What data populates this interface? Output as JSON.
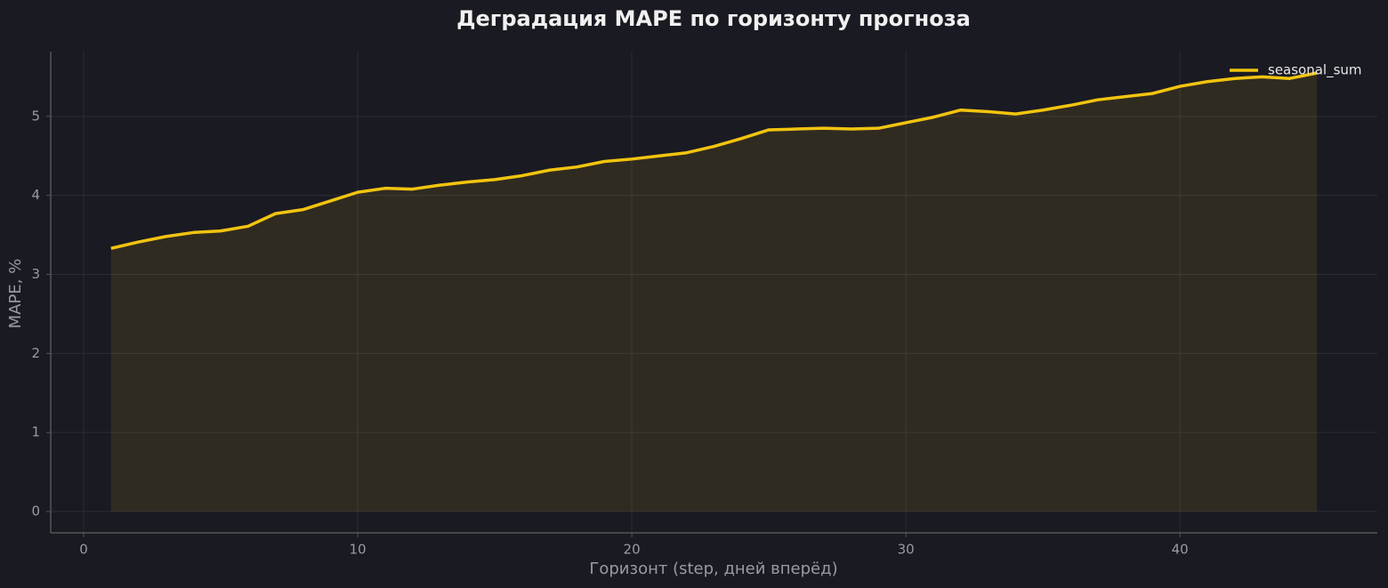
{
  "chart_data": {
    "type": "line",
    "title": "Деградация MAPE по горизонту прогноза",
    "xlabel": "Горизонт (step, дней вперёд)",
    "ylabel": "MAPE, %",
    "x": [
      1,
      2,
      3,
      4,
      5,
      6,
      7,
      8,
      9,
      10,
      11,
      12,
      13,
      14,
      15,
      16,
      17,
      18,
      19,
      20,
      21,
      22,
      23,
      24,
      25,
      26,
      27,
      28,
      29,
      30,
      31,
      32,
      33,
      34,
      35,
      36,
      37,
      38,
      39,
      40,
      41,
      42,
      43,
      44,
      45
    ],
    "series": [
      {
        "name": "seasonal_sum",
        "color": "#f2c40f",
        "values": [
          3.33,
          3.41,
          3.48,
          3.53,
          3.55,
          3.61,
          3.77,
          3.82,
          3.93,
          4.04,
          4.09,
          4.08,
          4.13,
          4.17,
          4.2,
          4.25,
          4.32,
          4.36,
          4.43,
          4.46,
          4.5,
          4.54,
          4.62,
          4.72,
          4.83,
          4.84,
          4.85,
          4.84,
          4.85,
          4.92,
          4.99,
          5.08,
          5.06,
          5.03,
          5.08,
          5.14,
          5.21,
          5.25,
          5.29,
          5.38,
          5.44,
          5.48,
          5.5,
          5.48,
          5.55
        ]
      }
    ],
    "xlim": [
      -1.2,
      47.2
    ],
    "ylim": [
      -0.27,
      5.82
    ],
    "xticks": [
      0,
      10,
      20,
      30,
      40
    ],
    "yticks": [
      0,
      1,
      2,
      3,
      4,
      5
    ],
    "grid": true,
    "fill_area": true,
    "legend": "upper right"
  }
}
